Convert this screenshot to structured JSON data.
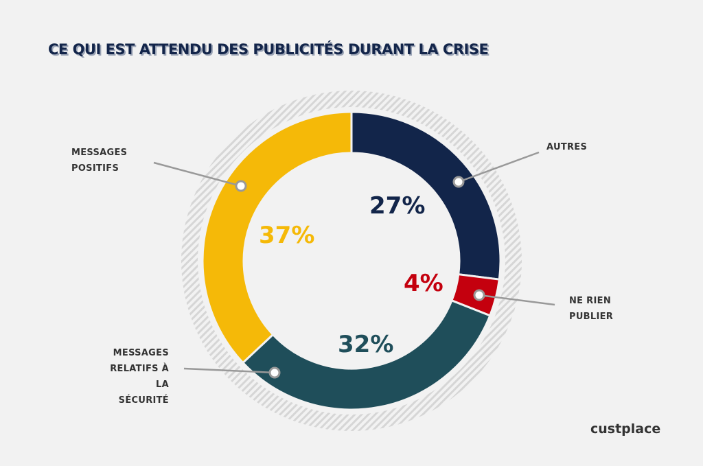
{
  "chart_data": {
    "type": "pie",
    "title": "CE QUI EST ATTENDU DES PUBLICITÉS DURANT LA CRISE",
    "slices": [
      {
        "label": "AUTRES",
        "value": 27,
        "value_label": "27%",
        "color": "#12254a"
      },
      {
        "label": "NE RIEN PUBLIER",
        "value": 4,
        "value_label": "4%",
        "color": "#c4000e"
      },
      {
        "label": "MESSAGES RELATIFS À LA SÉCURITÉ",
        "value": 32,
        "value_label": "32%",
        "color": "#1f4e5a"
      },
      {
        "label": "MESSAGES POSITIFS",
        "value": 37,
        "value_label": "37%",
        "color": "#f5b908"
      }
    ]
  },
  "labels": {
    "autres": "AUTRES",
    "ne_rien_1": "NE RIEN",
    "ne_rien_2": "PUBLIER",
    "securite_1": "MESSAGES",
    "securite_2": "RELATIFS À LA",
    "securite_3": "SÉCURITÉ",
    "positifs_1": "MESSAGES",
    "positifs_2": "POSITIFS"
  },
  "logo": "custplace"
}
